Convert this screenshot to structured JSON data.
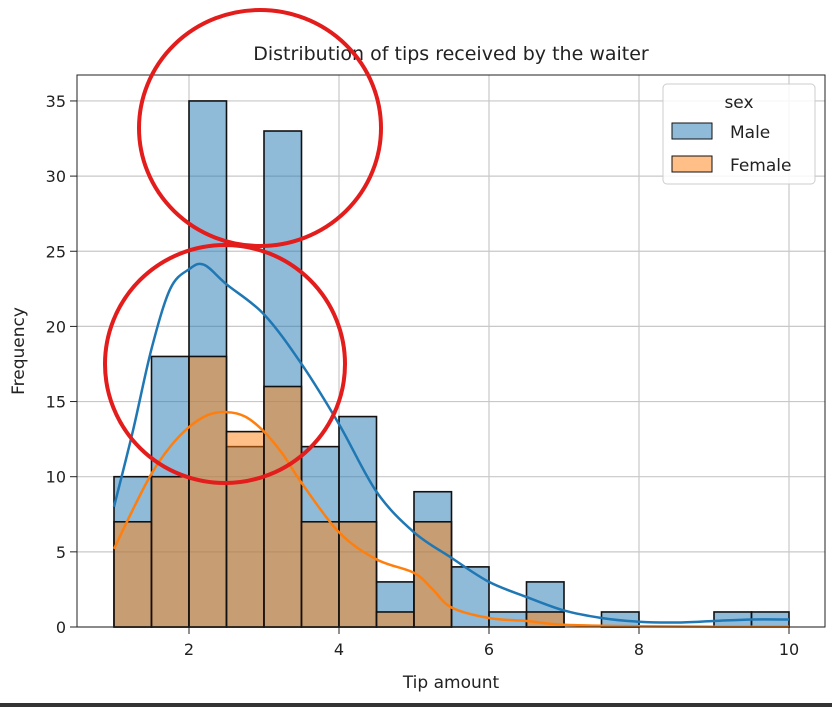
{
  "chart_data": {
    "type": "histogram",
    "title": "Distribution of tips received by the waiter",
    "xlabel": "Tip amount",
    "ylabel": "Frequency",
    "xlim": [
      0.5,
      10.5
    ],
    "ylim": [
      0,
      36.7
    ],
    "xticks": [
      2,
      4,
      6,
      8,
      10
    ],
    "yticks": [
      0,
      5,
      10,
      15,
      20,
      25,
      30,
      35
    ],
    "grid": true,
    "legend": {
      "title": "sex",
      "placement": "top-right"
    },
    "bin_edges": [
      1,
      1.5,
      2,
      2.5,
      3,
      3.5,
      4,
      4.5,
      5,
      5.5,
      6,
      6.5,
      7,
      7.5,
      8,
      8.5,
      9,
      9.5,
      10
    ],
    "series": [
      {
        "name": "Male",
        "color": "#1f77b4",
        "counts": [
          10,
          18,
          35,
          12,
          33,
          12,
          14,
          3,
          9,
          4,
          1,
          3,
          0,
          1,
          0,
          0,
          1,
          1
        ],
        "kde": {
          "x": [
            1,
            1.25,
            1.5,
            1.75,
            2,
            2.2,
            2.5,
            3,
            3.5,
            4,
            4.5,
            5,
            5.5,
            6,
            6.5,
            7,
            7.5,
            8,
            8.5,
            9,
            9.5,
            10
          ],
          "y": [
            8,
            13,
            18.5,
            22.5,
            23.8,
            24.1,
            22.8,
            20.8,
            17.5,
            13.5,
            9,
            6.3,
            4.6,
            3,
            2,
            1.1,
            0.6,
            0.35,
            0.3,
            0.4,
            0.5,
            0.5
          ]
        }
      },
      {
        "name": "Female",
        "color": "#ff7f0e",
        "counts": [
          7,
          10,
          18,
          13,
          16,
          7,
          7,
          1,
          7,
          0,
          0,
          1,
          0,
          0,
          0,
          0,
          0,
          0
        ],
        "kde": {
          "x": [
            1,
            1.25,
            1.5,
            1.75,
            2,
            2.25,
            2.5,
            2.75,
            3,
            3.25,
            3.5,
            4,
            4.5,
            5,
            5.25,
            5.5,
            6,
            6.5,
            7,
            8,
            9,
            10
          ],
          "y": [
            5.2,
            7.8,
            10.2,
            12,
            13.3,
            14.1,
            14.3,
            14,
            13,
            11.5,
            9.6,
            6.3,
            4.5,
            3.6,
            2.5,
            1.3,
            0.6,
            0.4,
            0.15,
            0.05,
            0.02,
            0.02
          ]
        }
      }
    ]
  },
  "annotations": {
    "circle_color": "#e31c1c"
  }
}
